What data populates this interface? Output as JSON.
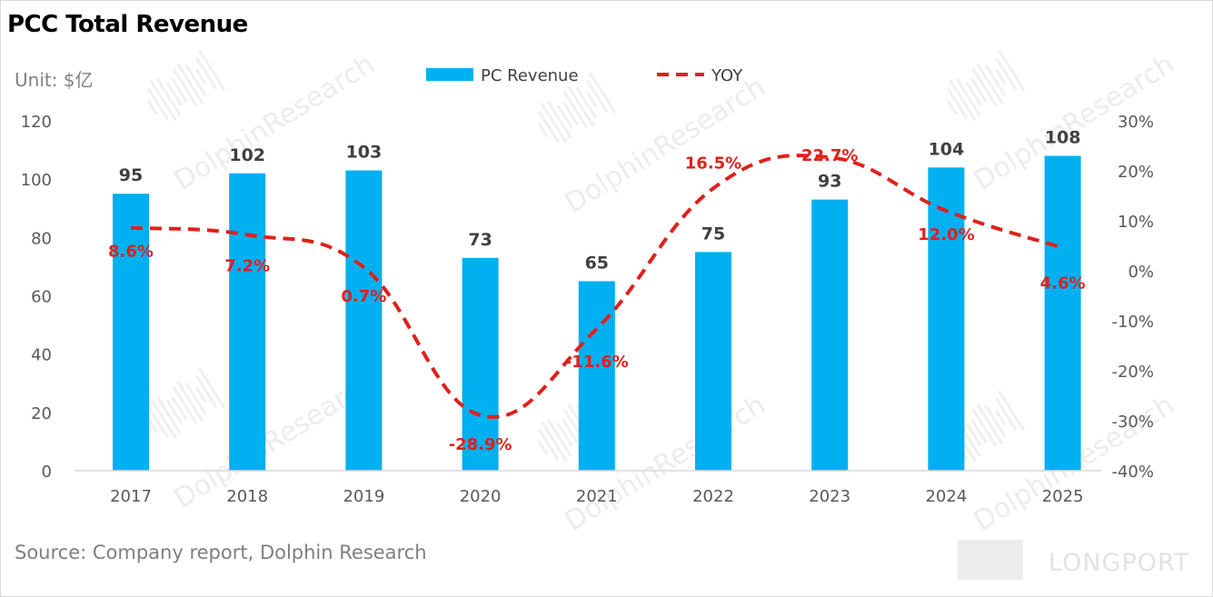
{
  "header": {
    "title": "PCC Total Revenue",
    "unit": "Unit: $亿"
  },
  "footer": {
    "source": "Source: Company report, Dolphin Research"
  },
  "watermark": {
    "text": "DolphinResearch",
    "brand": "LONGPORT"
  },
  "colors": {
    "bar": "#00b0f0",
    "line": "#e0201b",
    "axis_text": "#595959",
    "bar_label": "#404040"
  },
  "chart_data": {
    "type": "bar",
    "title": "PCC Total Revenue",
    "categories": [
      "2017",
      "2018",
      "2019",
      "2020",
      "2021",
      "2022",
      "2023",
      "2024",
      "2025"
    ],
    "series": [
      {
        "name": "PC Revenue",
        "type": "bar",
        "axis": "left",
        "values": [
          95,
          102,
          103,
          73,
          65,
          75,
          93,
          104,
          108
        ]
      },
      {
        "name": "YOY",
        "type": "line",
        "style": "dashed",
        "axis": "right",
        "values": [
          8.6,
          7.2,
          0.7,
          -28.9,
          -11.6,
          16.5,
          22.7,
          12.0,
          4.6
        ],
        "labels": [
          "8.6%",
          "7.2%",
          "0.7%",
          "-28.9%",
          "-11.6%",
          "16.5%",
          "22.7%",
          "12.0%",
          "4.6%"
        ]
      }
    ],
    "y_left": {
      "range": [
        0,
        120
      ],
      "ticks": [
        "0",
        "20",
        "40",
        "60",
        "80",
        "100",
        "120"
      ]
    },
    "y_right": {
      "range": [
        -40,
        30
      ],
      "ticks": [
        "-40%",
        "-30%",
        "-20%",
        "-10%",
        "0%",
        "10%",
        "20%",
        "30%"
      ]
    },
    "legend": {
      "position": "top-center"
    },
    "grid": false
  }
}
